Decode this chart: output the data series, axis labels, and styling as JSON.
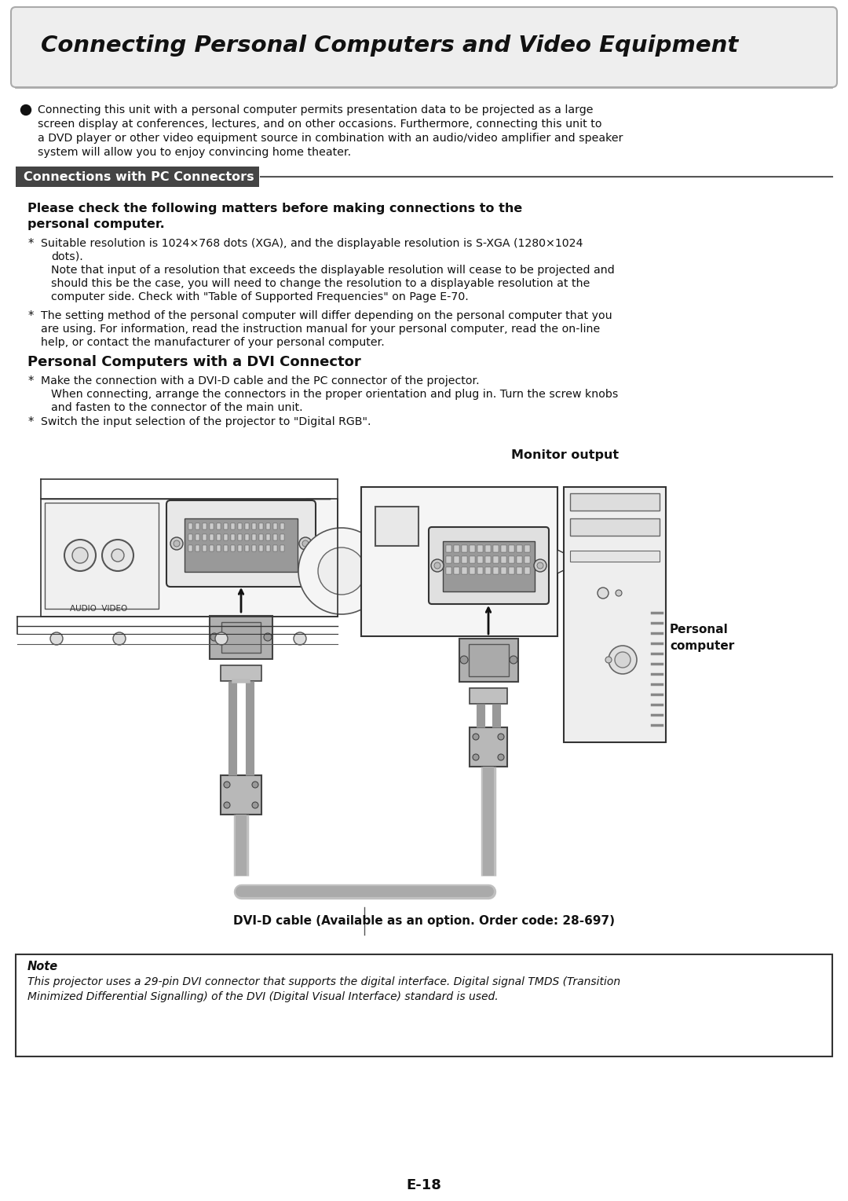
{
  "page_title": "Connecting Personal Computers and Video Equipment",
  "section1_title": "Connections with PC Connectors",
  "bullet_intro_line1": "Connecting this unit with a personal computer permits presentation data to be projected as a large",
  "bullet_intro_line2": "screen display at conferences, lectures, and on other occasions. Furthermore, connecting this unit to",
  "bullet_intro_line3": "a DVD player or other video equipment source in combination with an audio/video amplifier and speaker",
  "bullet_intro_line4": "system will allow you to enjoy convincing home theater.",
  "check_line1": "Please check the following matters before making connections to the",
  "check_line2": "personal computer.",
  "star1": "Suitable resolution is 1024×768 dots (XGA), and the displayable resolution is S-XGA (1280×1024",
  "star1b": "dots).",
  "star1c": "Note that input of a resolution that exceeds the displayable resolution will cease to be projected and",
  "star1d": "should this be the case, you will need to change the resolution to a displayable resolution at the",
  "star1e": "computer side. Check with \"Table of Supported Frequencies\" on Page E-70.",
  "star2": "The setting method of the personal computer will differ depending on the personal computer that you",
  "star2b": "are using. For information, read the instruction manual for your personal computer, read the on-line",
  "star2c": "help, or contact the manufacturer of your personal computer.",
  "section3_title": "Personal Computers with a DVI Connector",
  "dvi1a": "Make the connection with a DVI-D cable and the PC connector of the projector.",
  "dvi1b": "When connecting, arrange the connectors in the proper orientation and plug in. Turn the screw knobs",
  "dvi1c": "and fasten to the connector of the main unit.",
  "dvi2": "Switch the input selection of the projector to \"Digital RGB\".",
  "monitor_output_label": "Monitor output",
  "audio_video_label": "AUDIO  VIDEO",
  "dvi_cable_label": "DVI-D cable (Available as an option. Order code: 28-697)",
  "personal_computer_label": "Personal\ncomputer",
  "note_title": "Note",
  "note_text_line1": "This projector uses a 29-pin DVI connector that supports the digital interface. Digital signal TMDS (Transition",
  "note_text_line2": "Minimized Differential Signalling) of the DVI (Digital Visual Interface) standard is used.",
  "page_number": "E-18",
  "bg_color": "#ffffff",
  "text_color": "#000000"
}
